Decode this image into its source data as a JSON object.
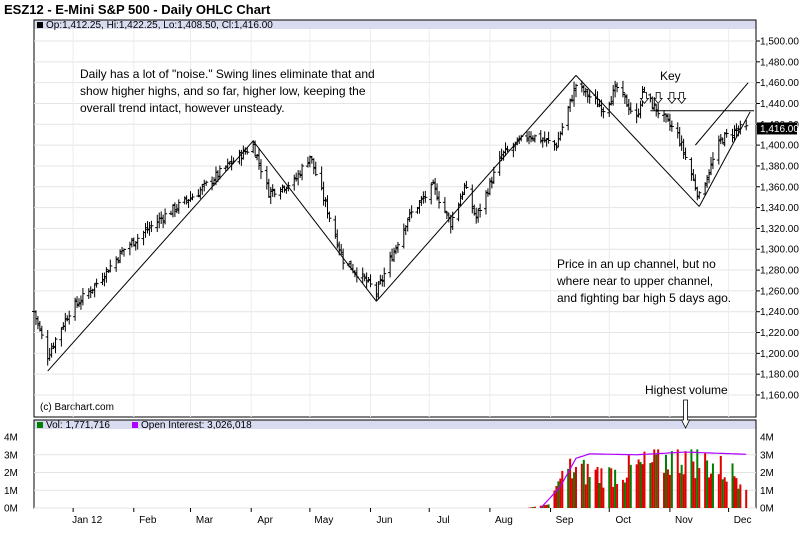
{
  "title": "ESZ12 - E-Mini S&P 500 - Daily OHLC Chart",
  "header": {
    "ohlc": "Op:1,412.25, Hi:1,422.25, Lo:1,408.50, Cl:1,416.00",
    "vol": "Vol: 1,771,716",
    "oi": "Open Interest: 3,026,018",
    "copyright": "(c) Barchart.com"
  },
  "colors": {
    "band": "#d9dcf0",
    "up_volume": "#008000",
    "down_volume": "#e00000",
    "open_interest": "#b000ff",
    "price_bar": "#000000"
  },
  "annotations": {
    "note1": [
      "Daily has a lot of \"noise.\"  Swing lines eliminate that and",
      "show higher highs, and so far, higher low, keeping the",
      "overall trend intact, however unsteady."
    ],
    "note2": [
      "Price in an up channel, but no",
      "where near to upper channel,",
      "and fighting bar high 5 days ago."
    ],
    "key": "Key",
    "highest_volume": "Highest volume"
  },
  "chart_data": [
    {
      "type": "ohlc",
      "title": "ESZ12 - E-Mini S&P 500 - Daily OHLC Chart",
      "x_tick_labels": [
        "Jan 12",
        "Feb",
        "Mar",
        "Apr",
        "May",
        "Jun",
        "Jul",
        "Aug",
        "Sep",
        "Oct",
        "Nov",
        "Dec"
      ],
      "y_tick_labels": [
        1500,
        1480,
        1460,
        1440,
        1420,
        1400,
        1380,
        1360,
        1340,
        1320,
        1300,
        1280,
        1260,
        1240,
        1220,
        1200,
        1180,
        1160
      ],
      "ylim": [
        1150,
        1508
      ],
      "last_price_label": "1,416.00",
      "last_close": 1416,
      "swing_points": [
        {
          "date": "2011-12-19",
          "price": 1183
        },
        {
          "date": "2012-04-02",
          "price": 1404
        },
        {
          "date": "2012-06-04",
          "price": 1250
        },
        {
          "date": "2012-09-14",
          "price": 1467
        },
        {
          "date": "2012-11-16",
          "price": 1341
        }
      ],
      "channel_lower": [
        {
          "date": "2012-11-16",
          "price": 1341
        },
        {
          "date": "2012-12-12",
          "price": 1432
        }
      ],
      "channel_upper": [
        {
          "date": "2012-11-14",
          "price": 1400
        },
        {
          "date": "2012-12-11",
          "price": 1460
        }
      ],
      "resistance": {
        "from_date": "2012-10-22",
        "to_date": "2012-12-14",
        "price": 1433
      },
      "series": [
        {
          "close_anchors": [
            {
              "date": "2011-12-12",
              "price": 1240
            },
            {
              "date": "2011-12-19",
              "price": 1198
            },
            {
              "date": "2011-12-30",
              "price": 1240
            },
            {
              "date": "2012-01-12",
              "price": 1265
            },
            {
              "date": "2012-01-27",
              "price": 1300
            },
            {
              "date": "2012-02-15",
              "price": 1330
            },
            {
              "date": "2012-03-05",
              "price": 1355
            },
            {
              "date": "2012-03-23",
              "price": 1385
            },
            {
              "date": "2012-04-02",
              "price": 1400
            },
            {
              "date": "2012-04-10",
              "price": 1355
            },
            {
              "date": "2012-04-23",
              "price": 1365
            },
            {
              "date": "2012-05-01",
              "price": 1390
            },
            {
              "date": "2012-05-18",
              "price": 1290
            },
            {
              "date": "2012-06-01",
              "price": 1265
            },
            {
              "date": "2012-06-04",
              "price": 1258
            },
            {
              "date": "2012-06-20",
              "price": 1330
            },
            {
              "date": "2012-07-03",
              "price": 1360
            },
            {
              "date": "2012-07-12",
              "price": 1325
            },
            {
              "date": "2012-07-19",
              "price": 1360
            },
            {
              "date": "2012-07-25",
              "price": 1330
            },
            {
              "date": "2012-08-07",
              "price": 1390
            },
            {
              "date": "2012-08-21",
              "price": 1410
            },
            {
              "date": "2012-09-04",
              "price": 1400
            },
            {
              "date": "2012-09-14",
              "price": 1458
            },
            {
              "date": "2012-09-28",
              "price": 1435
            },
            {
              "date": "2012-10-05",
              "price": 1455
            },
            {
              "date": "2012-10-15",
              "price": 1425
            },
            {
              "date": "2012-10-18",
              "price": 1450
            },
            {
              "date": "2012-11-05",
              "price": 1410
            },
            {
              "date": "2012-11-16",
              "price": 1350
            },
            {
              "date": "2012-11-27",
              "price": 1405
            },
            {
              "date": "2012-12-05",
              "price": 1415
            },
            {
              "date": "2012-12-10",
              "price": 1416
            }
          ]
        }
      ]
    },
    {
      "type": "bar",
      "title": "Volume / Open Interest",
      "y_tick_labels": [
        "4M",
        "3M",
        "2M",
        "1M",
        "0M"
      ],
      "ylim": [
        0,
        4000000
      ],
      "highest_volume": {
        "date": "2012-11-09",
        "value": 3200000
      },
      "series": [
        {
          "name": "Vol",
          "last_value": 1771716,
          "anchors": [
            {
              "date": "2012-08-20",
              "value": 0
            },
            {
              "date": "2012-08-31",
              "value": 200000
            },
            {
              "date": "2012-09-05",
              "value": 1500000
            },
            {
              "date": "2012-09-10",
              "value": 2300000
            },
            {
              "date": "2012-10-01",
              "value": 2000000
            },
            {
              "date": "2012-11-09",
              "value": 3200000
            },
            {
              "date": "2012-12-10",
              "value": 1771716
            }
          ]
        },
        {
          "name": "Open Interest",
          "last_value": 3026018,
          "anchors": [
            {
              "date": "2012-08-27",
              "value": 0
            },
            {
              "date": "2012-09-06",
              "value": 1200000
            },
            {
              "date": "2012-09-14",
              "value": 2800000
            },
            {
              "date": "2012-09-21",
              "value": 3050000
            },
            {
              "date": "2012-10-15",
              "value": 3000000
            },
            {
              "date": "2012-11-09",
              "value": 3150000
            },
            {
              "date": "2012-12-10",
              "value": 3026018
            }
          ]
        }
      ]
    }
  ]
}
